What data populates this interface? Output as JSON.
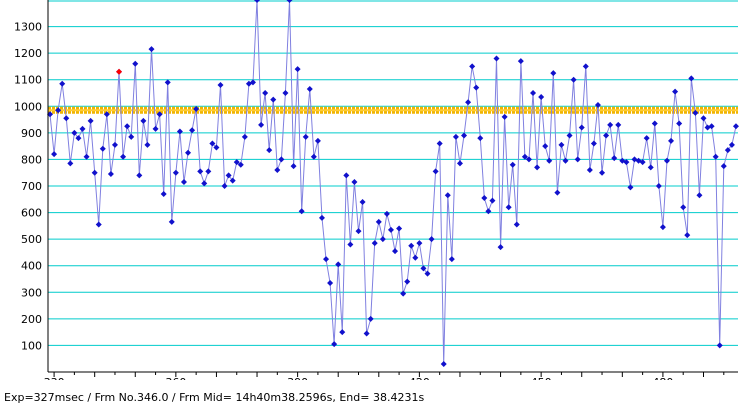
{
  "chart_data": {
    "type": "scatter",
    "title": "",
    "xlabel": "",
    "ylabel": "",
    "xlim": [
      328.5,
      498.5
    ],
    "ylim": [
      0,
      1400
    ],
    "x_ticks": [
      330,
      360,
      390,
      420,
      450,
      480
    ],
    "y_ticks": [
      100,
      200,
      300,
      400,
      500,
      600,
      700,
      800,
      900,
      1000,
      1100,
      1200,
      1300
    ],
    "grid": "horizontal",
    "legend": "none",
    "series": [
      {
        "x": [
          329,
          330,
          331,
          332,
          333,
          334,
          335,
          336,
          337,
          338,
          339,
          340,
          341,
          342,
          343,
          344,
          345,
          346,
          347,
          348,
          349,
          350,
          351,
          352,
          353,
          354,
          355,
          356,
          357,
          358,
          359,
          360,
          361,
          362,
          363,
          364,
          365,
          366,
          367,
          368,
          369,
          370,
          371,
          372,
          373,
          374,
          375,
          376,
          377,
          378,
          379,
          380,
          381,
          382,
          383,
          384,
          385,
          386,
          387,
          388,
          389,
          390,
          391,
          392,
          393,
          394,
          395,
          396,
          397,
          398,
          399,
          400,
          401,
          402,
          403,
          404,
          405,
          406,
          407,
          408,
          409,
          410,
          411,
          412,
          413,
          414,
          415,
          416,
          417,
          418,
          419,
          420,
          421,
          422,
          423,
          424,
          425,
          426,
          427,
          428,
          429,
          430,
          431,
          432,
          433,
          434,
          435,
          436,
          437,
          438,
          439,
          440,
          441,
          442,
          443,
          444,
          445,
          446,
          447,
          448,
          449,
          450,
          451,
          452,
          453,
          454,
          455,
          456,
          457,
          458,
          459,
          460,
          461,
          462,
          463,
          464,
          465,
          466,
          467,
          468,
          469,
          470,
          471,
          472,
          473,
          474,
          475,
          476,
          477,
          478,
          479,
          480,
          481,
          482,
          483,
          484,
          485,
          486,
          487,
          488,
          489,
          490,
          491,
          492,
          493,
          494,
          495,
          496,
          497,
          498
        ],
        "y": [
          970,
          820,
          985,
          1085,
          955,
          785,
          900,
          880,
          915,
          810,
          945,
          750,
          555,
          840,
          970,
          745,
          855,
          1130,
          810,
          925,
          885,
          1160,
          740,
          945,
          855,
          1215,
          915,
          970,
          670,
          1090,
          565,
          750,
          905,
          715,
          825,
          910,
          990,
          755,
          710,
          755,
          860,
          845,
          1080,
          700,
          740,
          720,
          790,
          780,
          885,
          1085,
          1090,
          1400,
          930,
          1050,
          835,
          1025,
          760,
          800,
          1050,
          1400,
          775,
          1140,
          605,
          885,
          1065,
          810,
          870,
          580,
          425,
          335,
          105,
          405,
          150,
          740,
          480,
          715,
          530,
          640,
          145,
          200,
          485,
          565,
          500,
          595,
          535,
          455,
          540,
          295,
          340,
          475,
          430,
          485,
          390,
          370,
          500,
          755,
          860,
          30,
          665,
          425,
          885,
          785,
          890,
          1015,
          1150,
          1070,
          880,
          655,
          605,
          645,
          1180,
          470,
          960,
          620,
          780,
          555,
          1170,
          810,
          800,
          1050,
          770,
          1035,
          850,
          795,
          1125,
          675,
          855,
          795,
          890,
          1100,
          800,
          920,
          1150,
          760,
          860,
          1005,
          750,
          890,
          930,
          805,
          930,
          795,
          790,
          695,
          800,
          795,
          790,
          880,
          770,
          935,
          700,
          545,
          795,
          870,
          1055,
          935,
          620,
          515,
          1105,
          975,
          665,
          955,
          920,
          925,
          810,
          100,
          775,
          835,
          855,
          925
        ],
        "color": "#1111cc"
      }
    ],
    "reference_lines": [
      {
        "y": 985,
        "color": "#f0b400"
      }
    ],
    "highlight_points": [
      {
        "x": 346,
        "y": 1130,
        "color": "#ff0000"
      }
    ]
  },
  "status": {
    "text": "Exp=327msec / Frm No.346.0 / Frm Mid= 14h40m38.2596s,  End= 38.4231s"
  },
  "colors": {
    "grid": "#00cccc",
    "line": "#8080e0",
    "marker": "#1111cc",
    "reference": "#f0b400",
    "highlight": "#ff0000"
  }
}
